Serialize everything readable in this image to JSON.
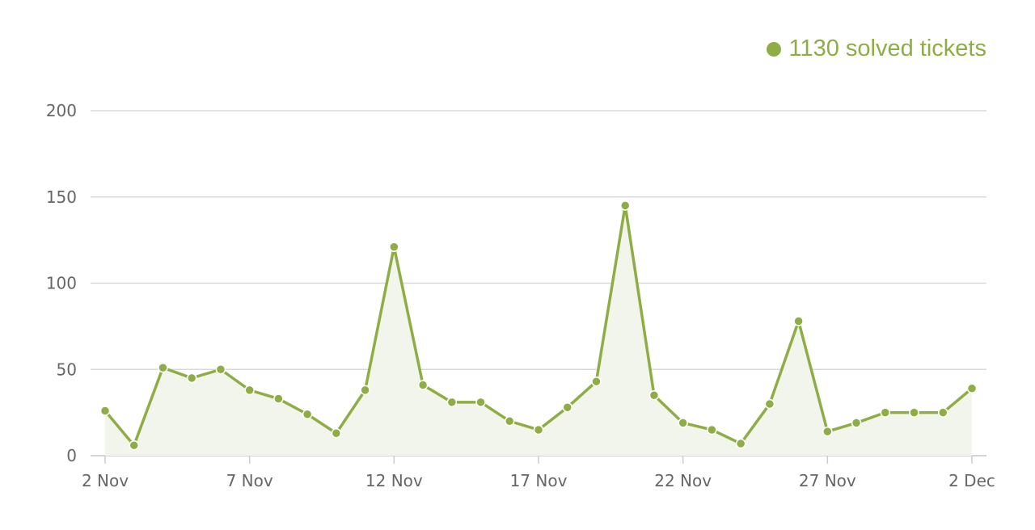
{
  "legend": {
    "label": "1130 solved tickets",
    "color": "#8fad45"
  },
  "chart_data": {
    "type": "area",
    "x": [
      "2 Nov",
      "3 Nov",
      "4 Nov",
      "5 Nov",
      "6 Nov",
      "7 Nov",
      "8 Nov",
      "9 Nov",
      "10 Nov",
      "11 Nov",
      "12 Nov",
      "13 Nov",
      "14 Nov",
      "15 Nov",
      "16 Nov",
      "17 Nov",
      "18 Nov",
      "19 Nov",
      "20 Nov",
      "21 Nov",
      "22 Nov",
      "23 Nov",
      "24 Nov",
      "25 Nov",
      "26 Nov",
      "27 Nov",
      "28 Nov",
      "29 Nov",
      "30 Nov",
      "1 Dec",
      "2 Dec"
    ],
    "series": [
      {
        "name": "1130 solved tickets",
        "values": [
          26,
          6,
          51,
          45,
          50,
          38,
          33,
          24,
          13,
          38,
          121,
          41,
          31,
          31,
          20,
          15,
          28,
          43,
          145,
          35,
          19,
          15,
          7,
          30,
          78,
          14,
          19,
          25,
          25,
          25,
          39
        ]
      }
    ],
    "xticks": [
      "2 Nov",
      "7 Nov",
      "12 Nov",
      "17 Nov",
      "22 Nov",
      "27 Nov",
      "2 Dec"
    ],
    "yticks": [
      "0",
      "50",
      "100",
      "150",
      "200"
    ],
    "ylim": [
      0,
      200
    ],
    "grid": true,
    "legend_position": "top-right",
    "colors": {
      "line": "#8fad45",
      "fill": "#f2f5ec",
      "marker_stroke": "#ffffff"
    }
  }
}
